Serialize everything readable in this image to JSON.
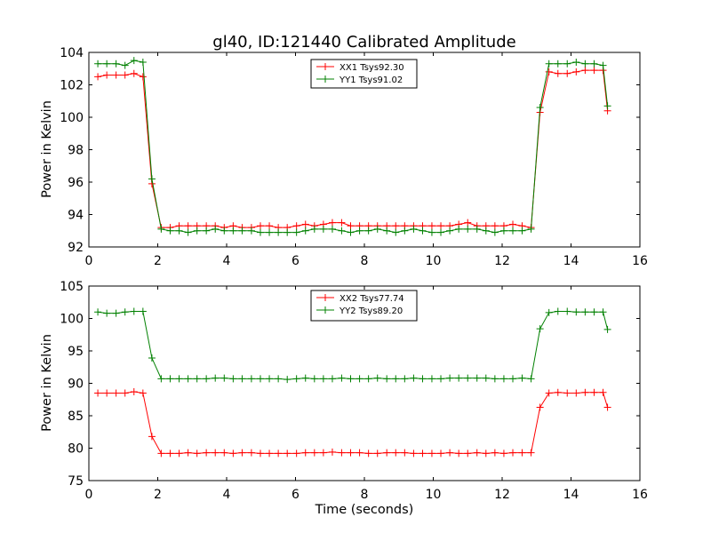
{
  "chart_data": [
    {
      "type": "line",
      "title": "gl40, ID:121440 Calibrated Amplitude",
      "xlabel": "",
      "ylabel": "Power in Kelvin",
      "xlim": [
        0,
        16
      ],
      "ylim": [
        92,
        104
      ],
      "xticks": [
        0,
        2,
        4,
        6,
        8,
        10,
        12,
        14,
        16
      ],
      "yticks": [
        92,
        94,
        96,
        98,
        100,
        102,
        104
      ],
      "grid": false,
      "legend_position": "upper-center",
      "x": [
        0.26,
        0.52,
        0.79,
        1.05,
        1.31,
        1.57,
        1.83,
        2.1,
        2.36,
        2.62,
        2.88,
        3.14,
        3.41,
        3.67,
        3.93,
        4.19,
        4.45,
        4.72,
        4.98,
        5.24,
        5.5,
        5.76,
        6.03,
        6.29,
        6.55,
        6.81,
        7.07,
        7.34,
        7.6,
        7.86,
        8.12,
        8.38,
        8.65,
        8.91,
        9.17,
        9.43,
        9.69,
        9.96,
        10.22,
        10.48,
        10.74,
        11.0,
        11.27,
        11.53,
        11.79,
        12.05,
        12.31,
        12.58,
        12.84,
        13.1,
        13.36,
        13.62,
        13.89,
        14.15,
        14.41,
        14.67,
        14.93,
        15.06
      ],
      "series": [
        {
          "name": "XX1 Tsys92.30",
          "color": "#ff0000",
          "values": [
            102.5,
            102.6,
            102.6,
            102.6,
            102.7,
            102.5,
            95.9,
            93.2,
            93.2,
            93.3,
            93.3,
            93.3,
            93.3,
            93.3,
            93.2,
            93.3,
            93.2,
            93.2,
            93.3,
            93.3,
            93.2,
            93.2,
            93.3,
            93.4,
            93.3,
            93.4,
            93.5,
            93.5,
            93.3,
            93.3,
            93.3,
            93.3,
            93.3,
            93.3,
            93.3,
            93.3,
            93.3,
            93.3,
            93.3,
            93.3,
            93.4,
            93.5,
            93.3,
            93.3,
            93.3,
            93.3,
            93.4,
            93.3,
            93.2,
            100.3,
            102.8,
            102.7,
            102.7,
            102.8,
            102.9,
            102.9,
            102.9,
            100.4
          ]
        },
        {
          "name": "YY1 Tsys91.02",
          "color": "#008000",
          "values": [
            103.3,
            103.3,
            103.3,
            103.2,
            103.5,
            103.4,
            96.2,
            93.1,
            93.0,
            93.0,
            92.9,
            93.0,
            93.0,
            93.1,
            93.0,
            93.0,
            93.0,
            93.0,
            92.9,
            92.9,
            92.9,
            92.9,
            92.9,
            93.0,
            93.1,
            93.1,
            93.1,
            93.0,
            92.9,
            93.0,
            93.0,
            93.1,
            93.0,
            92.9,
            93.0,
            93.1,
            93.0,
            92.9,
            92.9,
            93.0,
            93.1,
            93.1,
            93.1,
            93.0,
            92.9,
            93.0,
            93.0,
            93.0,
            93.1,
            100.6,
            103.3,
            103.3,
            103.3,
            103.4,
            103.3,
            103.3,
            103.2,
            100.7
          ]
        }
      ]
    },
    {
      "type": "line",
      "title": "",
      "xlabel": "Time (seconds)",
      "ylabel": "Power in Kelvin",
      "xlim": [
        0,
        16
      ],
      "ylim": [
        75,
        105
      ],
      "xticks": [
        0,
        2,
        4,
        6,
        8,
        10,
        12,
        14,
        16
      ],
      "yticks": [
        75,
        80,
        85,
        90,
        95,
        100,
        105
      ],
      "grid": false,
      "legend_position": "upper-center",
      "x": [
        0.26,
        0.52,
        0.79,
        1.05,
        1.31,
        1.57,
        1.83,
        2.1,
        2.36,
        2.62,
        2.88,
        3.14,
        3.41,
        3.67,
        3.93,
        4.19,
        4.45,
        4.72,
        4.98,
        5.24,
        5.5,
        5.76,
        6.03,
        6.29,
        6.55,
        6.81,
        7.07,
        7.34,
        7.6,
        7.86,
        8.12,
        8.38,
        8.65,
        8.91,
        9.17,
        9.43,
        9.69,
        9.96,
        10.22,
        10.48,
        10.74,
        11.0,
        11.27,
        11.53,
        11.79,
        12.05,
        12.31,
        12.58,
        12.84,
        13.1,
        13.36,
        13.62,
        13.89,
        14.15,
        14.41,
        14.67,
        14.93,
        15.06
      ],
      "series": [
        {
          "name": "XX2 Tsys77.74",
          "color": "#ff0000",
          "values": [
            88.5,
            88.5,
            88.5,
            88.5,
            88.7,
            88.5,
            81.8,
            79.2,
            79.2,
            79.2,
            79.3,
            79.2,
            79.3,
            79.3,
            79.3,
            79.2,
            79.3,
            79.3,
            79.2,
            79.2,
            79.2,
            79.2,
            79.2,
            79.3,
            79.3,
            79.3,
            79.4,
            79.3,
            79.3,
            79.3,
            79.2,
            79.2,
            79.3,
            79.3,
            79.3,
            79.2,
            79.2,
            79.2,
            79.2,
            79.3,
            79.2,
            79.2,
            79.3,
            79.2,
            79.3,
            79.2,
            79.3,
            79.3,
            79.3,
            86.3,
            88.5,
            88.6,
            88.5,
            88.5,
            88.6,
            88.6,
            88.6,
            86.3
          ]
        },
        {
          "name": "YY2 Tsys89.20",
          "color": "#008000",
          "values": [
            101.0,
            100.8,
            100.8,
            101.0,
            101.1,
            101.1,
            93.9,
            90.7,
            90.7,
            90.7,
            90.7,
            90.7,
            90.7,
            90.8,
            90.8,
            90.7,
            90.7,
            90.7,
            90.7,
            90.7,
            90.7,
            90.6,
            90.7,
            90.8,
            90.7,
            90.7,
            90.7,
            90.8,
            90.7,
            90.7,
            90.7,
            90.8,
            90.7,
            90.7,
            90.7,
            90.8,
            90.7,
            90.7,
            90.7,
            90.8,
            90.8,
            90.8,
            90.8,
            90.8,
            90.7,
            90.7,
            90.7,
            90.8,
            90.7,
            98.4,
            100.9,
            101.1,
            101.1,
            101.0,
            101.0,
            101.0,
            101.0,
            98.3
          ]
        }
      ]
    }
  ]
}
